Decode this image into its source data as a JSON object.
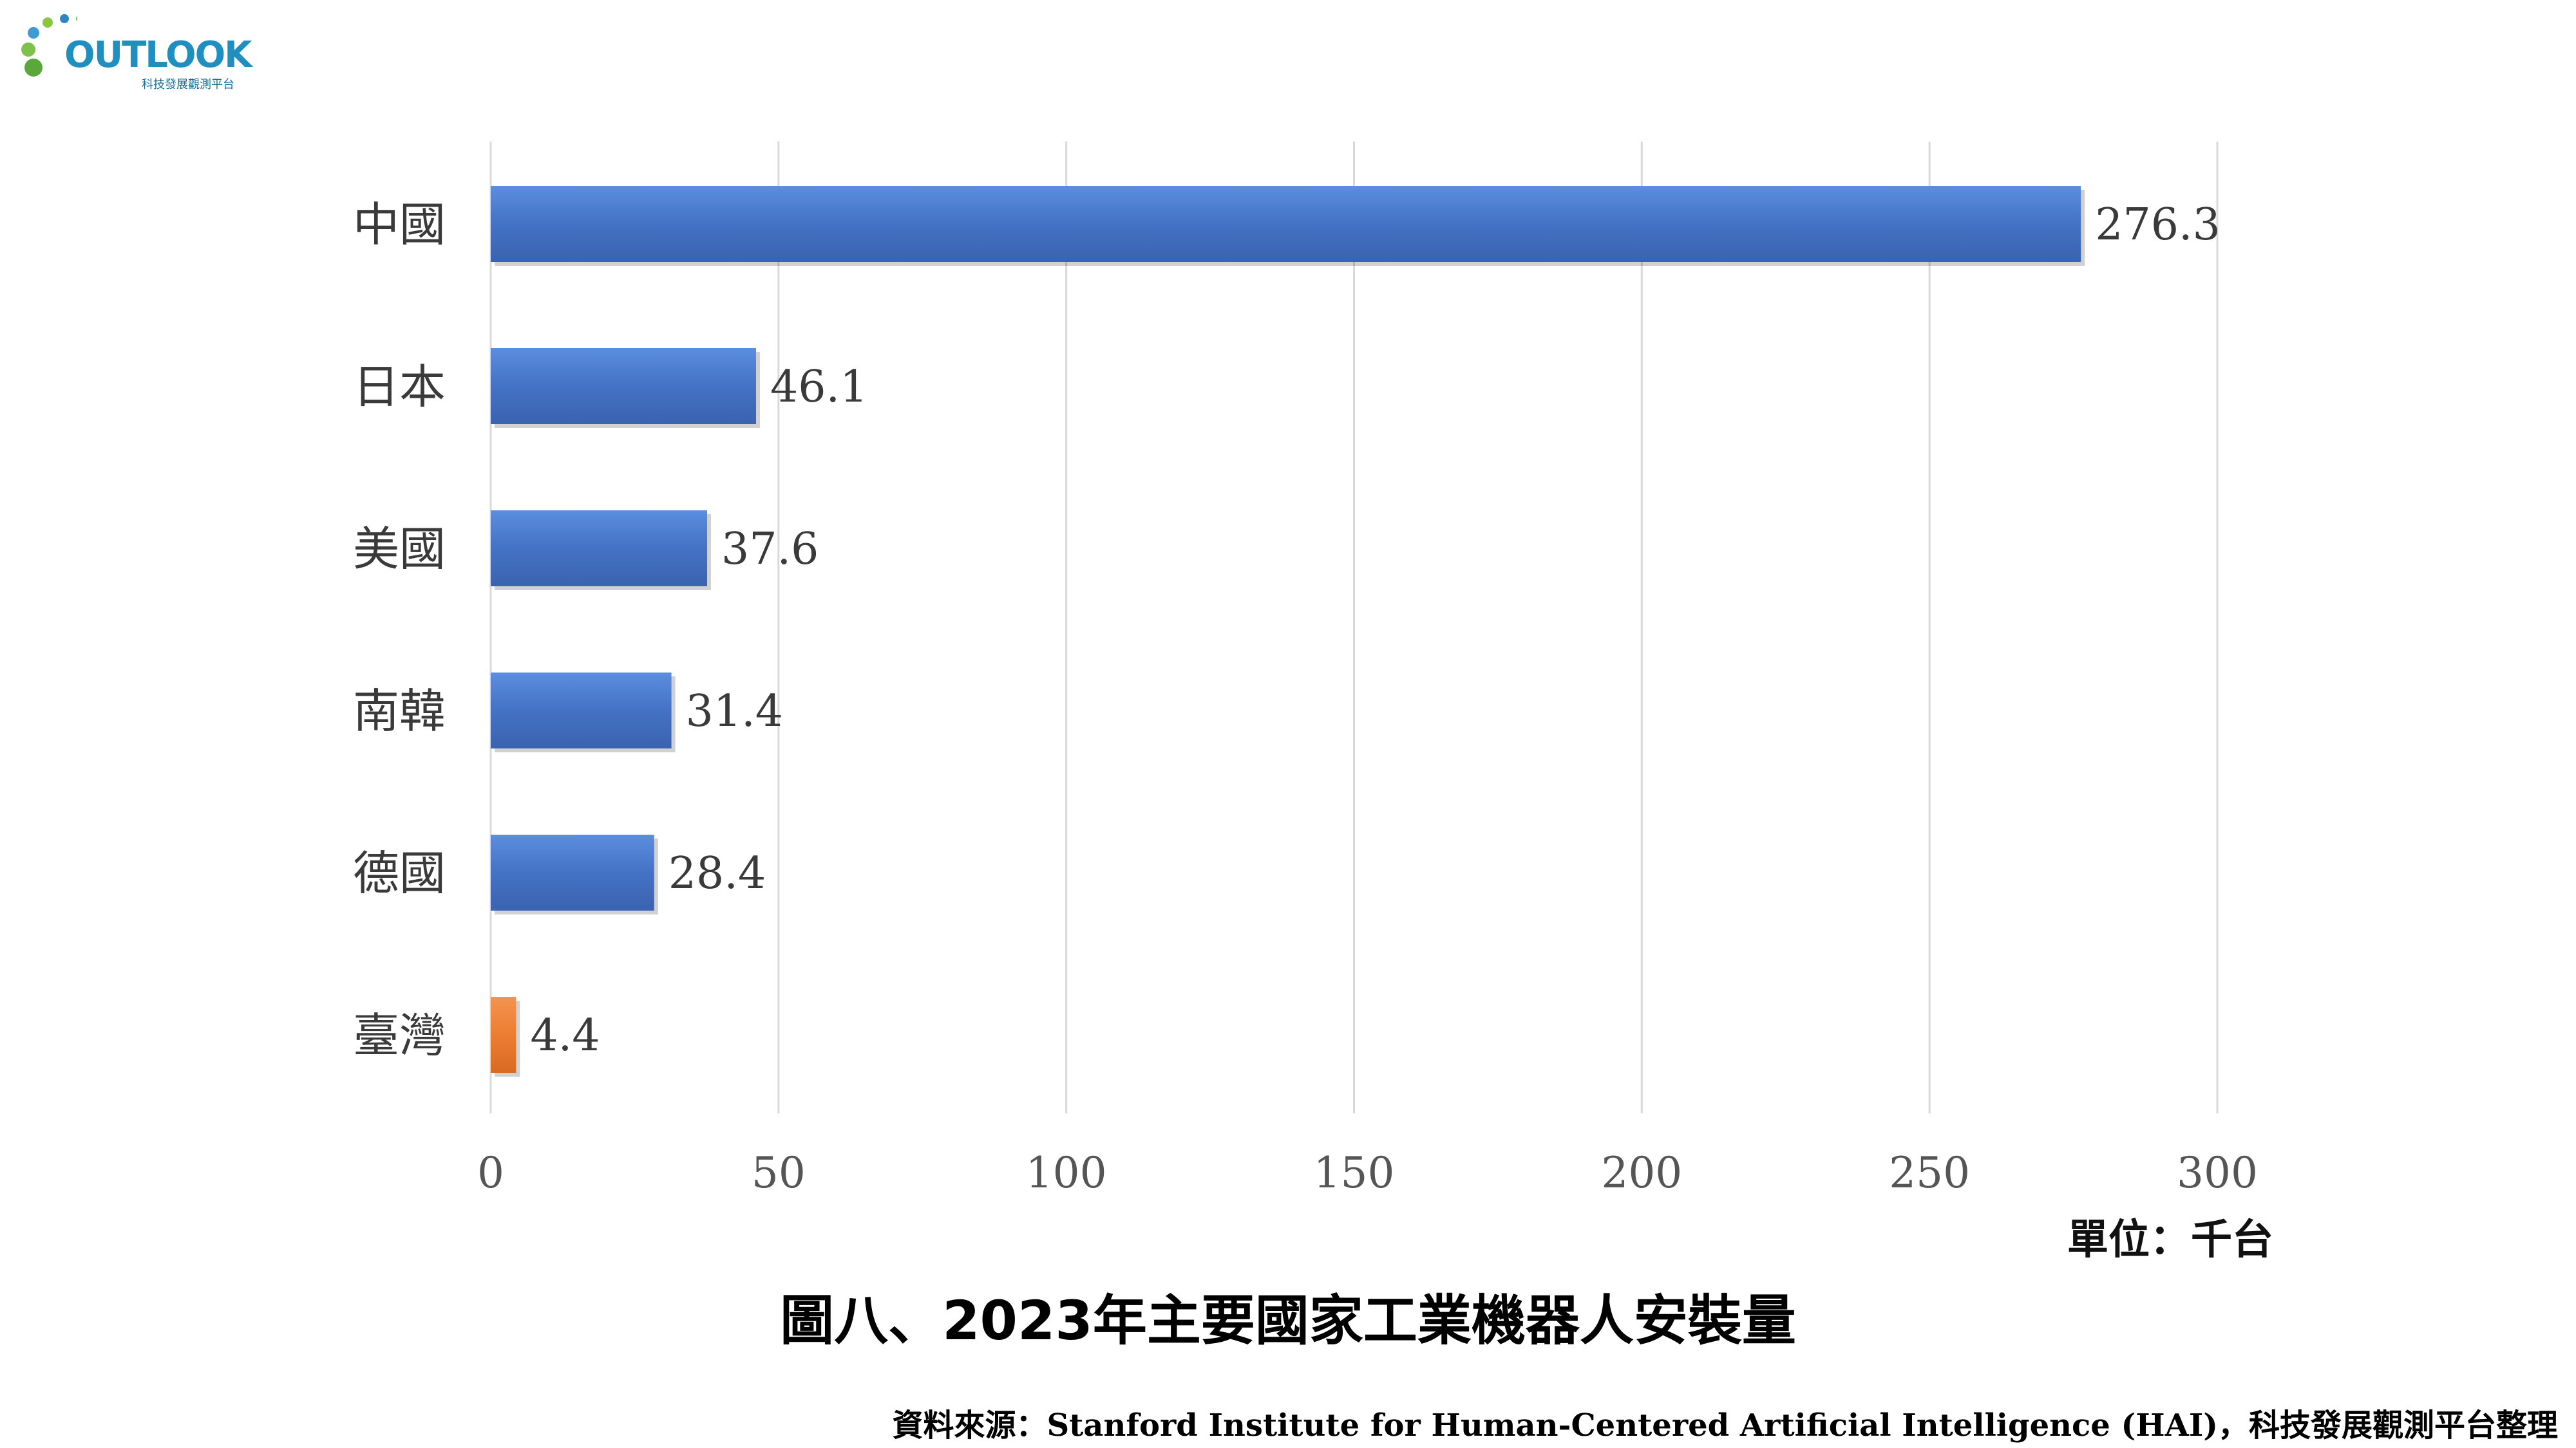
{
  "logo": {
    "text": "OUTLOOK",
    "subtitle": "科技發展觀測平台"
  },
  "colors": {
    "primary_bar": "#4472C4",
    "highlight_bar": "#ED7D31",
    "grid": "#D9D9D9"
  },
  "chart_data": {
    "type": "bar",
    "orientation": "horizontal",
    "title": "圖八、2023年主要國家工業機器人安裝量",
    "unit_label": "單位：千台",
    "categories": [
      "中國",
      "日本",
      "美國",
      "南韓",
      "德國",
      "臺灣"
    ],
    "values": [
      276.3,
      46.1,
      37.6,
      31.4,
      28.4,
      4.4
    ],
    "value_labels": [
      "276.3",
      "46.1",
      "37.6",
      "31.4",
      "28.4",
      "4.4"
    ],
    "highlight_category": "臺灣",
    "xlim": [
      0,
      300
    ],
    "xticks": [
      0,
      50,
      100,
      150,
      200,
      250,
      300
    ],
    "grid": true,
    "legend": "none"
  },
  "source": "資料來源：Stanford Institute for Human-Centered Artificial Intelligence (HAI)，科技發展觀測平台整理"
}
